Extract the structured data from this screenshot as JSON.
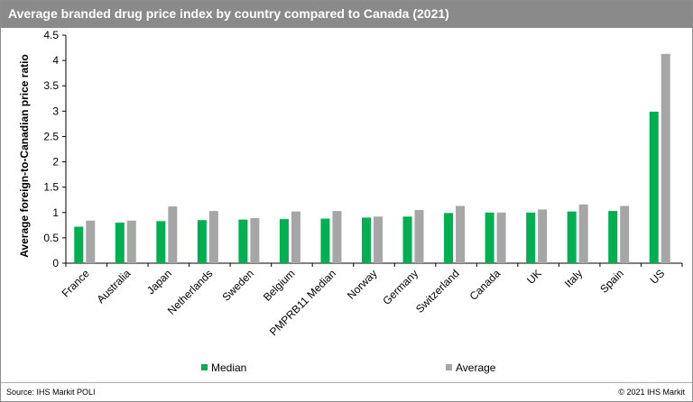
{
  "title": "Average branded drug price index by country compared to Canada (2021)",
  "source": "Source: IHS Markit POLI",
  "copyright": "© 2021 IHS Markit",
  "colors": {
    "median": "#00b050",
    "average": "#a6a6a6",
    "title_bg": "#8a8a8a"
  },
  "chart_data": {
    "type": "bar",
    "title": "Average branded drug price index by country compared to Canada (2021)",
    "xlabel": "",
    "ylabel": "Average foreign-to-Canadian price ratio",
    "ylim": [
      0,
      4.5
    ],
    "yticks": [
      "0",
      "0.5",
      "1",
      "1.5",
      "2",
      "2.5",
      "3",
      "3.5",
      "4",
      "4.5"
    ],
    "ytick_values": [
      0,
      0.5,
      1,
      1.5,
      2,
      2.5,
      3,
      3.5,
      4,
      4.5
    ],
    "grid": false,
    "legend_position": "bottom",
    "categories": [
      "France",
      "Australia",
      "Japan",
      "Netherlands",
      "Sweden",
      "Belgium",
      "PMPRB11 Median",
      "Norway",
      "Germany",
      "Switzerland",
      "Canada",
      "UK",
      "Italy",
      "Spain",
      "US"
    ],
    "series": [
      {
        "name": "Median",
        "values": [
          0.72,
          0.8,
          0.83,
          0.85,
          0.86,
          0.87,
          0.88,
          0.9,
          0.92,
          0.99,
          1.0,
          1.0,
          1.02,
          1.03,
          2.99
        ]
      },
      {
        "name": "Average",
        "values": [
          0.84,
          0.84,
          1.12,
          1.03,
          0.89,
          1.02,
          1.03,
          0.92,
          1.05,
          1.13,
          1.0,
          1.06,
          1.16,
          1.13,
          4.13
        ]
      }
    ]
  }
}
